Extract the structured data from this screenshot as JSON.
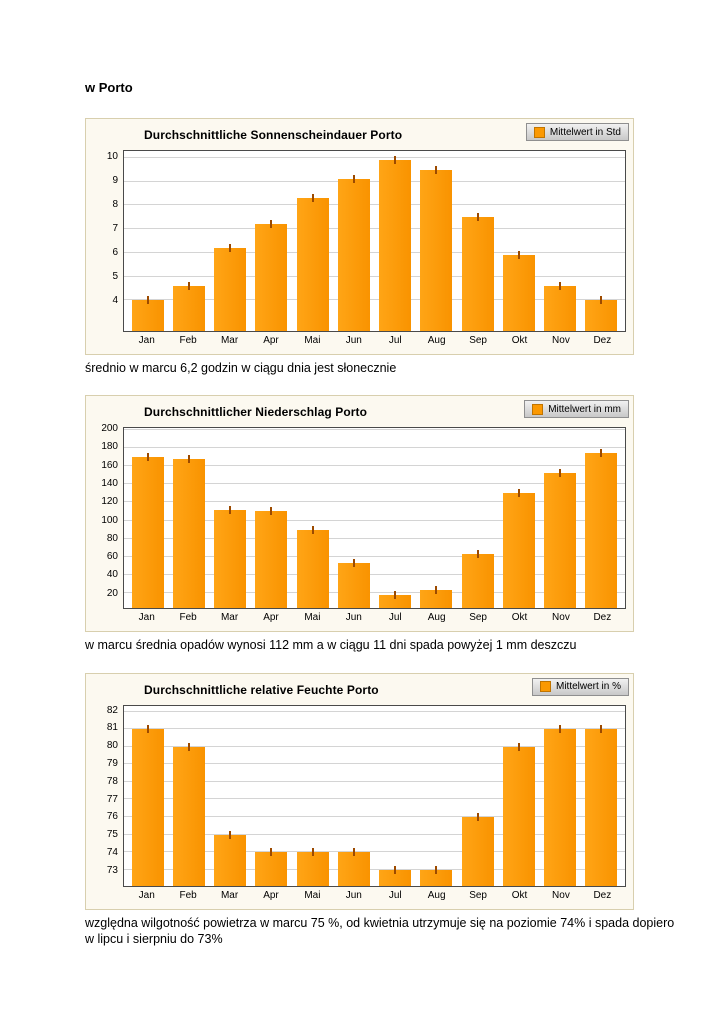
{
  "page": {
    "heading": "w Porto",
    "captions": [
      "średnio w marcu 6,2 godzin w ciągu dnia jest słonecznie",
      "w marcu średnia opadów wynosi 112 mm a w ciągu 11 dni spada powyżej 1 mm deszczu",
      "względna wilgotność powietrza w marcu 75 %, od kwietnia utrzymuje się na poziomie 74% i spada dopiero w lipcu i sierpniu do 73%"
    ]
  },
  "colors": {
    "bar": "#fb9902",
    "bar_marker": "#9c4a00",
    "panel_background": "#fcf9f0",
    "panel_border": "#d8cfae",
    "gridline": "#d4d4d4"
  },
  "chart_data": [
    {
      "type": "bar",
      "title": "Durchschnittliche Sonnenscheindauer Porto",
      "legend": "Mittelwert in Std",
      "categories": [
        "Jan",
        "Feb",
        "Mar",
        "Apr",
        "Mai",
        "Jun",
        "Jul",
        "Aug",
        "Sep",
        "Okt",
        "Nov",
        "Dez"
      ],
      "values": [
        4.0,
        4.6,
        6.2,
        7.2,
        8.3,
        9.1,
        9.9,
        9.5,
        7.5,
        5.9,
        4.6,
        4.0
      ],
      "yticks": [
        4,
        5,
        6,
        7,
        8,
        9,
        10
      ],
      "ylim": [
        2.7,
        10.3
      ],
      "xlabel": "",
      "ylabel": "Std",
      "grid": true,
      "legend_position": "top-right"
    },
    {
      "type": "bar",
      "title": "Durchschnittlicher Niederschlag Porto",
      "legend": "Mittelwert in mm",
      "categories": [
        "Jan",
        "Feb",
        "Mar",
        "Apr",
        "Mai",
        "Jun",
        "Jul",
        "Aug",
        "Sep",
        "Okt",
        "Nov",
        "Dez"
      ],
      "values": [
        170,
        168,
        112,
        111,
        89,
        53,
        18,
        23,
        63,
        130,
        152,
        175
      ],
      "yticks": [
        20,
        40,
        60,
        80,
        100,
        120,
        140,
        160,
        180,
        200
      ],
      "ylim": [
        3,
        202
      ],
      "xlabel": "",
      "ylabel": "mm",
      "grid": true,
      "legend_position": "top-right"
    },
    {
      "type": "bar",
      "title": "Durchschnittliche relative Feuchte Porto",
      "legend": "Mittelwert in %",
      "categories": [
        "Jan",
        "Feb",
        "Mar",
        "Apr",
        "Mai",
        "Jun",
        "Jul",
        "Aug",
        "Sep",
        "Okt",
        "Nov",
        "Dez"
      ],
      "values": [
        81,
        80,
        75,
        74,
        74,
        74,
        73,
        73,
        76,
        80,
        81,
        81
      ],
      "yticks": [
        73,
        74,
        75,
        76,
        77,
        78,
        79,
        80,
        81,
        82
      ],
      "ylim": [
        72.1,
        82.35
      ],
      "xlabel": "",
      "ylabel": "%",
      "grid": true,
      "legend_position": "top-right"
    }
  ]
}
